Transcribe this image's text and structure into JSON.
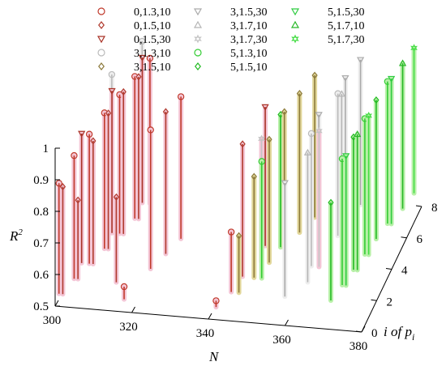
{
  "chart_data": {
    "type": "scatter",
    "subtype": "3d-stem",
    "title": "",
    "xlabel": "N",
    "ylabel": "i of p_i",
    "ylabel_parts": {
      "main": "i of p",
      "sub": "i"
    },
    "zlabel": "R^2",
    "zlabel_parts": {
      "main": "R",
      "sup": "2"
    },
    "xlim": [
      300,
      380
    ],
    "ylim": [
      0,
      8
    ],
    "zlim": [
      0.5,
      1.0
    ],
    "xticks": [
      "300",
      "320",
      "340",
      "360",
      "380"
    ],
    "yticks": [
      "0",
      "2",
      "4",
      "6",
      "8"
    ],
    "zticks": [
      "0.5",
      "0.6",
      "0.7",
      "0.8",
      "0.9",
      "1"
    ],
    "grid": false,
    "legend_position": "top",
    "series": [
      {
        "name": "0,1.3,10",
        "color": "#c0392b",
        "marker": "circle",
        "points": [
          {
            "x": 301,
            "y": 0,
            "z": 0.89
          },
          {
            "x": 303,
            "y": 1,
            "z": 0.93
          },
          {
            "x": 305,
            "y": 2,
            "z": 0.95
          },
          {
            "x": 307,
            "y": 3,
            "z": 0.97
          },
          {
            "x": 309,
            "y": 4,
            "z": 0.98
          },
          {
            "x": 311,
            "y": 5,
            "z": 0.99
          },
          {
            "x": 313,
            "y": 6,
            "z": 1.0
          },
          {
            "x": 318,
            "y": 0,
            "z": 0.58
          },
          {
            "x": 321,
            "y": 2,
            "z": 0.98
          },
          {
            "x": 325,
            "y": 4,
            "z": 0.99
          },
          {
            "x": 342,
            "y": 0,
            "z": 0.56
          },
          {
            "x": 344,
            "y": 1,
            "z": 0.73
          }
        ]
      },
      {
        "name": "0,1.5,10",
        "color": "#b03a2e",
        "marker": "diamond",
        "points": [
          {
            "x": 302,
            "y": 0,
            "z": 0.88
          },
          {
            "x": 304,
            "y": 1,
            "z": 0.79
          },
          {
            "x": 306,
            "y": 2,
            "z": 0.93
          },
          {
            "x": 308,
            "y": 3,
            "z": 0.97
          },
          {
            "x": 310,
            "y": 4,
            "z": 0.99
          },
          {
            "x": 312,
            "y": 5,
            "z": 0.99
          },
          {
            "x": 314,
            "y": 1,
            "z": 0.81
          },
          {
            "x": 323,
            "y": 3,
            "z": 0.99
          },
          {
            "x": 345,
            "y": 2,
            "z": 0.96
          }
        ]
      },
      {
        "name": "0,1.5,30",
        "color": "#a93226",
        "marker": "triangle-down",
        "points": [
          {
            "x": 303,
            "y": 2,
            "z": 0.95
          },
          {
            "x": 307,
            "y": 4,
            "z": 0.99
          },
          {
            "x": 311,
            "y": 6,
            "z": 1.0
          },
          {
            "x": 347,
            "y": 4,
            "z": 0.98
          }
        ]
      },
      {
        "name": "3,1.3,10",
        "color": "#bbbbbb",
        "marker": "circle",
        "points": [
          {
            "x": 305,
            "y": 5,
            "z": 0.99
          },
          {
            "x": 309,
            "y": 7,
            "z": 1.0
          },
          {
            "x": 361,
            "y": 3,
            "z": 0.96
          },
          {
            "x": 364,
            "y": 5,
            "z": 0.99
          }
        ]
      },
      {
        "name": "3,1.5,10",
        "color": "#8c7a3c",
        "marker": "diamond",
        "points": [
          {
            "x": 346,
            "y": 1,
            "z": 0.72
          },
          {
            "x": 348,
            "y": 2,
            "z": 0.86
          },
          {
            "x": 350,
            "y": 3,
            "z": 0.93
          },
          {
            "x": 352,
            "y": 4,
            "z": 0.97
          },
          {
            "x": 354,
            "y": 5,
            "z": 0.98
          },
          {
            "x": 356,
            "y": 6,
            "z": 0.99
          }
        ]
      },
      {
        "name": "3,1.5,30",
        "color": "#aaaaaa",
        "marker": "triangle-down",
        "points": [
          {
            "x": 358,
            "y": 1,
            "z": 0.9
          },
          {
            "x": 361,
            "y": 4,
            "z": 0.97
          },
          {
            "x": 364,
            "y": 6,
            "z": 0.99
          },
          {
            "x": 366,
            "y": 7,
            "z": 1.0
          }
        ]
      },
      {
        "name": "3,1.7,10",
        "color": "#b5b5b5",
        "marker": "triangle-up",
        "points": [
          {
            "x": 362,
            "y": 2,
            "z": 0.95
          },
          {
            "x": 365,
            "y": 5,
            "z": 0.99
          }
        ]
      },
      {
        "name": "3,1.7,30",
        "color": "#c4c4c4",
        "marker": "star",
        "points": [
          {
            "x": 348,
            "y": 3,
            "z": 0.93
          },
          {
            "x": 363,
            "y": 3,
            "z": 0.97
          }
        ]
      },
      {
        "name": "5,1.3,10",
        "color": "#33cc33",
        "marker": "circle",
        "points": [
          {
            "x": 350,
            "y": 2,
            "z": 0.91
          },
          {
            "x": 371,
            "y": 2,
            "z": 0.94
          },
          {
            "x": 373,
            "y": 4,
            "z": 0.97
          },
          {
            "x": 375,
            "y": 6,
            "z": 0.99
          }
        ]
      },
      {
        "name": "5,1.5,10",
        "color": "#22bb22",
        "marker": "diamond",
        "points": [
          {
            "x": 351,
            "y": 4,
            "z": 0.96
          },
          {
            "x": 370,
            "y": 1,
            "z": 0.85
          },
          {
            "x": 372,
            "y": 3,
            "z": 0.96
          },
          {
            "x": 374,
            "y": 5,
            "z": 0.98
          }
        ]
      },
      {
        "name": "5,1.5,30",
        "color": "#2ecc40",
        "marker": "triangle-down",
        "points": [
          {
            "x": 372,
            "y": 2,
            "z": 0.95
          },
          {
            "x": 376,
            "y": 6,
            "z": 1.0
          }
        ]
      },
      {
        "name": "5,1.7,10",
        "color": "#28b828",
        "marker": "triangle-up",
        "points": [
          {
            "x": 373,
            "y": 3,
            "z": 0.97
          },
          {
            "x": 377,
            "y": 7,
            "z": 1.0
          }
        ]
      },
      {
        "name": "5,1.7,30",
        "color": "#44dd44",
        "marker": "star",
        "points": [
          {
            "x": 374,
            "y": 4,
            "z": 0.98
          },
          {
            "x": 378,
            "y": 8,
            "z": 1.0
          }
        ]
      }
    ]
  }
}
